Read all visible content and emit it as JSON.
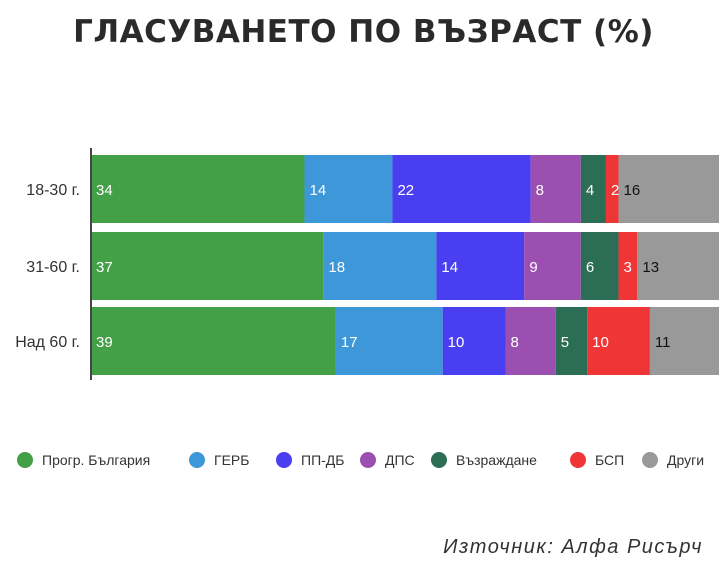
{
  "title": "ГЛАСУВАНЕТО ПО ВЪЗРАСТ (%)",
  "source": "Източник: Алфа Рисърч",
  "chart_data": {
    "type": "bar",
    "orientation": "horizontal",
    "stacked": true,
    "categories": [
      "18-30 г.",
      "31-60 г.",
      "Над 60 г."
    ],
    "series": [
      {
        "name": "Прогр. България",
        "color": "#43a047",
        "values": [
          34,
          37,
          39
        ]
      },
      {
        "name": "ГЕРБ",
        "color": "#3d97d8",
        "values": [
          14,
          18,
          17
        ]
      },
      {
        "name": "ПП-ДБ",
        "color": "#4a3ff0",
        "values": [
          22,
          14,
          10
        ]
      },
      {
        "name": "ДПС",
        "color": "#9b4fb0",
        "values": [
          8,
          9,
          8
        ]
      },
      {
        "name": "Възраждане",
        "color": "#2c6e55",
        "values": [
          4,
          6,
          5
        ]
      },
      {
        "name": "БСП",
        "color": "#ef3535",
        "values": [
          2,
          3,
          10
        ]
      },
      {
        "name": "Други",
        "color": "#999999",
        "values": [
          16,
          13,
          11
        ]
      }
    ],
    "xlim": [
      0,
      100
    ],
    "legend": "bottom",
    "grid": false
  }
}
